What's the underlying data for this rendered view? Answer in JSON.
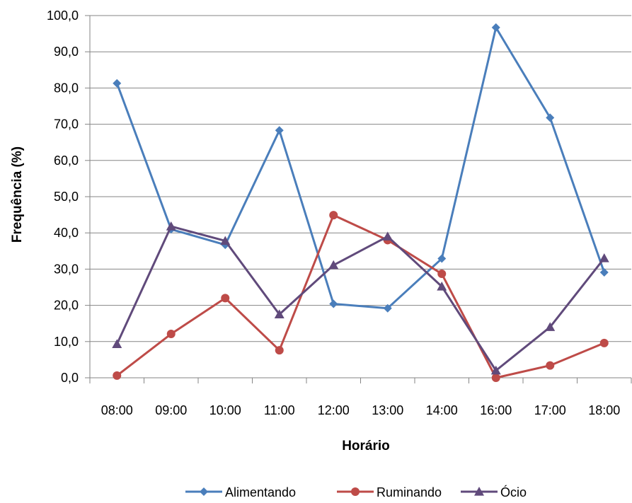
{
  "chart_data": {
    "type": "line",
    "title": "",
    "xlabel": "Horário",
    "ylabel": "Frequência (%)",
    "categories": [
      "08:00",
      "09:00",
      "10:00",
      "11:00",
      "12:00",
      "13:00",
      "14:00",
      "16:00",
      "17:00",
      "18:00"
    ],
    "ylim": [
      0,
      100
    ],
    "yticks": [
      "0,0",
      "10,0",
      "20,0",
      "30,0",
      "40,0",
      "50,0",
      "60,0",
      "70,0",
      "80,0",
      "90,0",
      "100,0"
    ],
    "grid": true,
    "legend_position": "bottom",
    "series": [
      {
        "name": "Alimentando",
        "color": "#4a7ebb",
        "marker": "diamond",
        "values": [
          81.3,
          41.0,
          36.7,
          68.3,
          20.4,
          19.2,
          32.9,
          96.7,
          71.8,
          29.1
        ]
      },
      {
        "name": "Ruminando",
        "color": "#be4b48",
        "marker": "circle",
        "values": [
          0.6,
          12.1,
          22.0,
          7.6,
          44.9,
          38.0,
          28.7,
          0.0,
          3.4,
          9.6
        ]
      },
      {
        "name": "Ócio",
        "color": "#604a7b",
        "marker": "triangle",
        "values": [
          9.3,
          41.8,
          37.8,
          17.5,
          31.1,
          39.0,
          25.2,
          2.0,
          14.0,
          33.0
        ]
      }
    ]
  }
}
